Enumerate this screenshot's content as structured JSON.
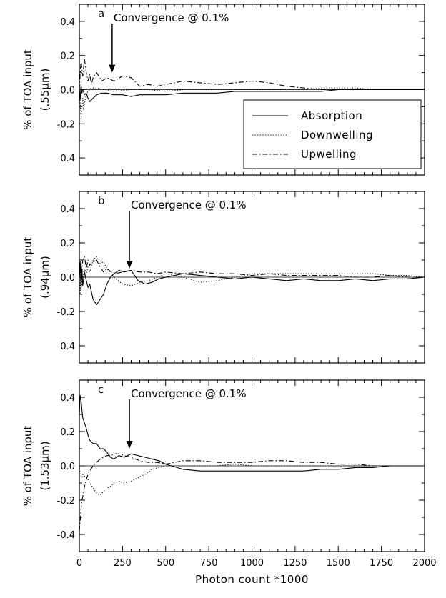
{
  "chart_data": [
    {
      "type": "line",
      "panel_letter": "a",
      "ylabel_line1": "% of TOA input",
      "ylabel_line2": "(.55μm)",
      "xlim": [
        0,
        2000
      ],
      "ylim": [
        -0.5,
        0.5
      ],
      "yticks": [
        "0.4",
        "0.2",
        "0.0",
        "-0.2",
        "-0.4"
      ],
      "annotation": {
        "text": "Convergence @ 0.1%",
        "arrow_x": 190,
        "arrow_y_tip": 0.1
      },
      "legend": {
        "placement": "center-right",
        "entries": [
          "Absorption",
          "Downwelling",
          "Upwelling"
        ]
      },
      "series": [
        {
          "name": "Absorption",
          "style": "solid",
          "x": [
            0,
            5,
            10,
            15,
            20,
            30,
            40,
            50,
            60,
            70,
            80,
            100,
            130,
            160,
            200,
            250,
            300,
            350,
            400,
            500,
            600,
            700,
            800,
            900,
            1000,
            1100,
            1200,
            1300,
            1400,
            1500,
            1600,
            1700,
            1800,
            1900,
            2000
          ],
          "values": [
            0.0,
            -0.06,
            0.03,
            -0.02,
            0.0,
            -0.03,
            -0.02,
            -0.05,
            -0.07,
            -0.06,
            -0.05,
            -0.03,
            -0.02,
            -0.02,
            -0.03,
            -0.03,
            -0.04,
            -0.03,
            -0.03,
            -0.03,
            -0.02,
            -0.02,
            -0.02,
            -0.01,
            -0.01,
            -0.01,
            -0.01,
            -0.01,
            -0.01,
            0.0,
            0.0,
            0.0,
            0.0,
            0.0,
            0.0
          ]
        },
        {
          "name": "Downwelling",
          "style": "dotted",
          "x": [
            0,
            5,
            10,
            15,
            20,
            25,
            30,
            40,
            50,
            60,
            70,
            80,
            100,
            150,
            200,
            300,
            400,
            500,
            600,
            700,
            800,
            900,
            1000,
            1100,
            1200,
            1300,
            1400,
            1500,
            1600,
            1700,
            1800,
            1900,
            2000
          ],
          "values": [
            0.0,
            -0.08,
            -0.17,
            -0.12,
            -0.05,
            -0.12,
            -0.08,
            -0.03,
            -0.01,
            0.0,
            0.01,
            0.01,
            0.01,
            0.0,
            -0.01,
            0.0,
            0.0,
            -0.01,
            0.0,
            0.0,
            0.0,
            0.0,
            0.0,
            0.0,
            0.0,
            0.0,
            0.01,
            0.01,
            0.01,
            0.0,
            0.0,
            0.0,
            0.0
          ]
        },
        {
          "name": "Upwelling",
          "style": "dashdot",
          "x": [
            0,
            5,
            10,
            15,
            20,
            30,
            40,
            50,
            60,
            70,
            80,
            100,
            130,
            160,
            200,
            250,
            300,
            350,
            400,
            450,
            500,
            600,
            700,
            800,
            900,
            1000,
            1100,
            1200,
            1300,
            1400,
            1500,
            1600,
            1700,
            1800,
            1900,
            2000
          ],
          "values": [
            0.0,
            0.1,
            0.17,
            0.12,
            0.08,
            0.18,
            0.1,
            0.05,
            0.09,
            0.03,
            0.07,
            0.1,
            0.05,
            0.07,
            0.05,
            0.08,
            0.07,
            0.02,
            0.03,
            0.02,
            0.03,
            0.05,
            0.04,
            0.03,
            0.04,
            0.05,
            0.04,
            0.02,
            0.01,
            0.0,
            0.0,
            0.0,
            0.0,
            0.0,
            0.0,
            0.0
          ]
        }
      ]
    },
    {
      "type": "line",
      "panel_letter": "b",
      "ylabel_line1": "% of TOA input",
      "ylabel_line2": "(.94μm)",
      "xlim": [
        0,
        2000
      ],
      "ylim": [
        -0.5,
        0.5
      ],
      "yticks": [
        "0.4",
        "0.2",
        "0.0",
        "-0.2",
        "-0.4"
      ],
      "annotation": {
        "text": "Convergence @ 0.1%",
        "arrow_x": 290,
        "arrow_y_tip": 0.05
      },
      "series": [
        {
          "name": "Absorption",
          "style": "solid",
          "x": [
            0,
            5,
            10,
            15,
            20,
            30,
            40,
            50,
            60,
            80,
            100,
            120,
            140,
            160,
            180,
            200,
            230,
            260,
            300,
            340,
            380,
            420,
            460,
            500,
            600,
            700,
            800,
            900,
            1000,
            1100,
            1200,
            1300,
            1400,
            1500,
            1600,
            1700,
            1800,
            1900,
            2000
          ],
          "values": [
            0.0,
            0.09,
            -0.08,
            0.05,
            -0.05,
            0.03,
            -0.02,
            -0.06,
            -0.04,
            -0.13,
            -0.16,
            -0.13,
            -0.1,
            -0.04,
            0.0,
            0.02,
            0.04,
            0.03,
            0.04,
            -0.02,
            -0.04,
            -0.03,
            -0.01,
            0.0,
            0.02,
            0.01,
            0.0,
            -0.01,
            0.0,
            -0.01,
            -0.02,
            -0.01,
            -0.02,
            -0.02,
            -0.01,
            -0.02,
            -0.01,
            -0.01,
            0.0
          ]
        },
        {
          "name": "Downwelling",
          "style": "dotted",
          "x": [
            0,
            5,
            10,
            15,
            20,
            30,
            40,
            50,
            60,
            80,
            100,
            120,
            140,
            160,
            200,
            250,
            300,
            350,
            400,
            450,
            500,
            550,
            600,
            700,
            800,
            900,
            1000,
            1100,
            1200,
            1300,
            1400,
            1500,
            1600,
            1700,
            1800,
            1900,
            2000
          ],
          "values": [
            0.0,
            -0.1,
            0.09,
            -0.05,
            0.0,
            0.05,
            0.02,
            0.06,
            0.03,
            0.1,
            0.12,
            0.08,
            0.09,
            0.05,
            0.0,
            -0.04,
            -0.05,
            -0.03,
            -0.02,
            0.0,
            0.02,
            0.01,
            0.0,
            -0.03,
            -0.02,
            0.0,
            0.02,
            0.02,
            0.02,
            0.02,
            0.02,
            0.02,
            0.02,
            0.02,
            0.01,
            0.01,
            0.0
          ]
        },
        {
          "name": "Upwelling",
          "style": "dashdot",
          "x": [
            0,
            5,
            10,
            15,
            20,
            30,
            40,
            50,
            60,
            80,
            100,
            120,
            140,
            160,
            200,
            250,
            300,
            350,
            400,
            450,
            500,
            600,
            700,
            800,
            900,
            1000,
            1100,
            1200,
            1300,
            1400,
            1500,
            1600,
            1700,
            1800,
            1900,
            2000
          ],
          "values": [
            0.0,
            0.05,
            0.08,
            0.03,
            0.1,
            0.12,
            0.05,
            0.1,
            0.07,
            0.09,
            0.1,
            0.06,
            0.03,
            0.05,
            0.02,
            0.03,
            0.04,
            0.03,
            0.03,
            0.02,
            0.03,
            0.02,
            0.03,
            0.02,
            0.02,
            0.01,
            0.02,
            0.01,
            0.01,
            0.01,
            0.01,
            0.0,
            0.0,
            0.01,
            0.0,
            0.0
          ]
        }
      ]
    },
    {
      "type": "line",
      "panel_letter": "c",
      "ylabel_line1": "% of TOA input",
      "ylabel_line2": "(1.53μm)",
      "xlim": [
        0,
        2000
      ],
      "ylim": [
        -0.5,
        0.5
      ],
      "yticks": [
        "0.4",
        "0.2",
        "0.0",
        "-0.2",
        "-0.4"
      ],
      "xticks": [
        "0",
        "250",
        "500",
        "750",
        "1000",
        "1250",
        "1500",
        "1750",
        "2000"
      ],
      "xlabel": "Photon count *1000",
      "annotation": {
        "text": "Convergence @ 0.1%",
        "arrow_x": 290,
        "arrow_y_tip": 0.1
      },
      "series": [
        {
          "name": "Absorption",
          "style": "solid",
          "x": [
            0,
            5,
            10,
            15,
            20,
            30,
            40,
            50,
            60,
            80,
            100,
            120,
            140,
            160,
            180,
            200,
            230,
            260,
            300,
            340,
            380,
            420,
            460,
            500,
            600,
            700,
            800,
            900,
            1000,
            1100,
            1200,
            1300,
            1400,
            1500,
            1600,
            1700,
            1800,
            1900,
            2000
          ],
          "values": [
            0.3,
            0.41,
            0.38,
            0.33,
            0.28,
            0.25,
            0.22,
            0.18,
            0.15,
            0.13,
            0.13,
            0.1,
            0.1,
            0.08,
            0.05,
            0.04,
            0.06,
            0.05,
            0.07,
            0.06,
            0.05,
            0.04,
            0.03,
            0.01,
            -0.02,
            -0.03,
            -0.03,
            -0.03,
            -0.03,
            -0.03,
            -0.03,
            -0.03,
            -0.02,
            -0.02,
            -0.01,
            -0.01,
            0.0,
            0.0,
            0.0
          ]
        },
        {
          "name": "Downwelling",
          "style": "dotted",
          "x": [
            0,
            5,
            10,
            15,
            20,
            30,
            40,
            50,
            60,
            80,
            100,
            120,
            140,
            160,
            180,
            200,
            230,
            260,
            300,
            340,
            380,
            420,
            460,
            500,
            550,
            600,
            700,
            800,
            900,
            1000,
            1100,
            1200,
            1300,
            1400,
            1500,
            1600,
            1700,
            1800,
            1900,
            2000
          ],
          "values": [
            0.0,
            -0.05,
            -0.06,
            -0.07,
            -0.05,
            -0.06,
            -0.07,
            -0.08,
            -0.1,
            -0.13,
            -0.16,
            -0.17,
            -0.15,
            -0.13,
            -0.12,
            -0.1,
            -0.09,
            -0.1,
            -0.09,
            -0.07,
            -0.05,
            -0.02,
            -0.01,
            0.0,
            0.0,
            0.0,
            0.0,
            0.0,
            0.01,
            0.0,
            0.0,
            0.0,
            0.0,
            0.0,
            0.0,
            0.0,
            0.0,
            0.0,
            0.0,
            0.0
          ]
        },
        {
          "name": "Upwelling",
          "style": "dashdot",
          "x": [
            0,
            5,
            10,
            15,
            20,
            30,
            40,
            50,
            60,
            80,
            100,
            120,
            140,
            160,
            180,
            200,
            230,
            260,
            300,
            350,
            400,
            450,
            500,
            550,
            600,
            700,
            800,
            900,
            1000,
            1100,
            1200,
            1300,
            1400,
            1500,
            1600,
            1700,
            1800,
            1900,
            2000
          ],
          "values": [
            -0.38,
            -0.32,
            -0.25,
            -0.2,
            -0.18,
            -0.12,
            -0.08,
            -0.05,
            -0.03,
            0.0,
            0.02,
            0.04,
            0.05,
            0.06,
            0.06,
            0.07,
            0.07,
            0.06,
            0.05,
            0.03,
            0.02,
            0.02,
            0.01,
            0.02,
            0.03,
            0.03,
            0.02,
            0.02,
            0.02,
            0.03,
            0.03,
            0.02,
            0.02,
            0.01,
            0.01,
            0.0,
            0.0,
            0.0,
            0.0
          ]
        }
      ]
    }
  ]
}
